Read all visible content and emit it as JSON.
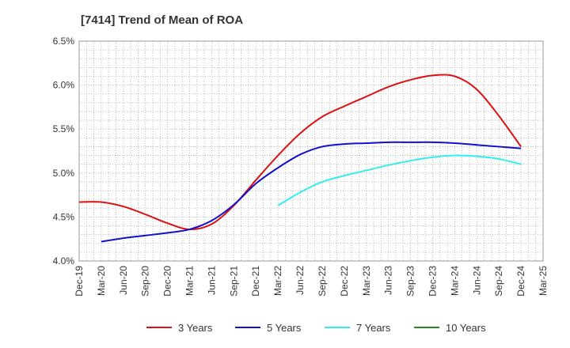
{
  "chart_data": {
    "type": "line",
    "title": "[7414]  Trend of Mean of ROA",
    "xlabel": "",
    "ylabel": "",
    "x": [
      "Dec-19",
      "Mar-20",
      "Jun-20",
      "Sep-20",
      "Dec-20",
      "Mar-21",
      "Jun-21",
      "Sep-21",
      "Dec-21",
      "Mar-22",
      "Jun-22",
      "Sep-22",
      "Dec-22",
      "Mar-23",
      "Jun-23",
      "Sep-23",
      "Dec-23",
      "Mar-24",
      "Jun-24",
      "Sep-24",
      "Dec-24",
      "Mar-25"
    ],
    "y_ticks": [
      "4.0%",
      "4.5%",
      "5.0%",
      "5.5%",
      "6.0%",
      "6.5%"
    ],
    "ylim": [
      4.0,
      6.5
    ],
    "grid": true,
    "legend_position": "bottom",
    "series": [
      {
        "name": "3 Years",
        "color": "#dd1111",
        "values": [
          4.67,
          4.67,
          4.62,
          4.53,
          4.43,
          4.36,
          4.42,
          4.63,
          4.92,
          5.2,
          5.45,
          5.64,
          5.76,
          5.87,
          5.98,
          6.06,
          6.11,
          6.1,
          5.95,
          5.65,
          5.3,
          null
        ]
      },
      {
        "name": "5 Years",
        "color": "#1111cc",
        "values": [
          null,
          4.22,
          4.26,
          4.29,
          4.32,
          4.36,
          4.46,
          4.64,
          4.88,
          5.06,
          5.21,
          5.3,
          5.33,
          5.34,
          5.35,
          5.35,
          5.35,
          5.34,
          5.32,
          5.3,
          5.28,
          null
        ]
      },
      {
        "name": "7 Years",
        "color": "#33eeee",
        "values": [
          null,
          null,
          null,
          null,
          null,
          null,
          null,
          null,
          null,
          4.63,
          4.78,
          4.9,
          4.97,
          5.03,
          5.09,
          5.14,
          5.18,
          5.2,
          5.19,
          5.16,
          5.1,
          null
        ]
      },
      {
        "name": "10 Years",
        "color": "#228822",
        "values": [
          null,
          null,
          null,
          null,
          null,
          null,
          null,
          null,
          null,
          null,
          null,
          null,
          null,
          null,
          null,
          null,
          null,
          null,
          null,
          null,
          null,
          null
        ]
      }
    ]
  }
}
